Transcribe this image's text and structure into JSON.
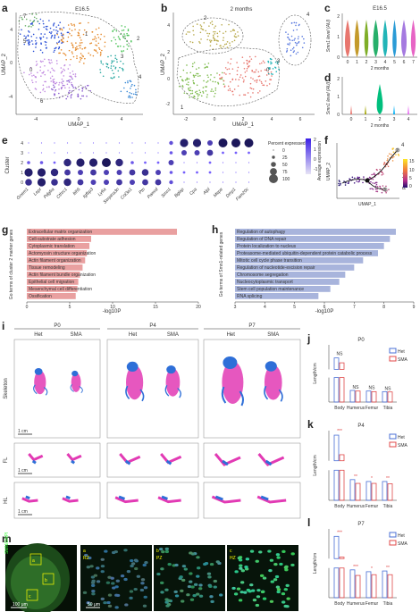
{
  "panels": {
    "a": {
      "label": "a",
      "title": "E16.5",
      "xlabel": "UMAP_1",
      "ylabel": "UMAP_2",
      "xticks": [
        "-4",
        "0",
        "4"
      ],
      "yticks": [
        "4",
        "0",
        "-4"
      ],
      "clusters": [
        "7",
        "5",
        "1",
        "0",
        "6",
        "2",
        "3",
        "4"
      ]
    },
    "b": {
      "label": "b",
      "title": "2 months",
      "xlabel": "UMAP_1",
      "ylabel": "UMAP_2",
      "xticks": [
        "-2",
        "0",
        "2",
        "4",
        "6"
      ],
      "yticks": [
        "4",
        "2",
        "0",
        "-2"
      ],
      "clusters": [
        "2",
        "0",
        "1",
        "3",
        "4"
      ]
    },
    "c": {
      "label": "c",
      "title": "E16.5",
      "ylabel": "Smn1 level (AU)",
      "xticks": [
        "0",
        "1",
        "2",
        "3",
        "4",
        "5",
        "6",
        "7"
      ],
      "yticks": [
        "0",
        "1",
        "2"
      ],
      "colors": [
        "#e8766e",
        "#c49a2b",
        "#7fae28",
        "#27b06b",
        "#22b5b8",
        "#2a9bd6",
        "#a57ae0",
        "#e765c5"
      ]
    },
    "d": {
      "label": "d",
      "title": "2 months",
      "ylabel": "Smn1 level (AU)",
      "xticks": [
        "0",
        "1",
        "2",
        "3",
        "4"
      ],
      "yticks": [
        "0",
        "1",
        "2"
      ],
      "colors": [
        "#e8766e",
        "#a3a500",
        "#00bf7d",
        "#00b0f6",
        "#e76bf3"
      ]
    },
    "e": {
      "label": "e",
      "ylabel": "Cluster",
      "genes": [
        "Gnem1",
        "Lepr",
        "Pdgfra",
        "Cthrc1",
        "Itih5",
        "Igfbp3",
        "Ly6a",
        "Serpina3n",
        "Col3a1",
        "Ptn",
        "Pamrd",
        "Smn1",
        "Bglap",
        "Cpa",
        "Alpl",
        "Mepe",
        "Dmp1",
        "Fam20c"
      ],
      "clusters": [
        "4",
        "3",
        "2",
        "1",
        "0"
      ],
      "size_legend": {
        "title": "Percent expressed",
        "values": [
          "0",
          "25",
          "50",
          "75",
          "100"
        ]
      },
      "color_legend": {
        "title": "Average expression",
        "values": [
          "2",
          "1",
          "0",
          "-1"
        ]
      }
    },
    "f": {
      "label": "f",
      "xlabel": "UMAP_1",
      "ylabel": "UMAP_2",
      "legend_title": "Pseudotime",
      "legend_values": [
        "15",
        "10",
        "5",
        "0"
      ],
      "nodes": [
        "1",
        "2",
        "3",
        "4"
      ]
    },
    "g": {
      "label": "g",
      "ylabel": "Go terms of cluster 2 marker genes",
      "xlabel": "-log10P",
      "xticks": [
        "0",
        "5",
        "10",
        "15",
        "20"
      ]
    },
    "h": {
      "label": "h",
      "ylabel": "Go terms of Smn1-related genes",
      "xlabel": "-log10P",
      "xticks": [
        "3",
        "4",
        "5",
        "6",
        "7",
        "8",
        "9"
      ]
    },
    "i": {
      "label": "i",
      "groups": [
        "P0",
        "P4",
        "P7"
      ],
      "genotypes": [
        "Het",
        "SMA"
      ],
      "rows": [
        "Skeleton",
        "FL",
        "HL"
      ],
      "scale": "1 cm"
    },
    "j": {
      "label": "j",
      "title": "P0",
      "ylabel": "Length/cm"
    },
    "k": {
      "label": "k",
      "title": "P4",
      "ylabel": "Length/cm"
    },
    "l": {
      "label": "l",
      "title": "P7",
      "ylabel": "Length/cm"
    },
    "m": {
      "label": "m",
      "stain": "SMN/DAPI",
      "scale1": "100 μm",
      "scale2": "50 μm",
      "subs": [
        {
          "letter": "a",
          "zone": "RZ"
        },
        {
          "letter": "b",
          "zone": "PZ"
        },
        {
          "letter": "c",
          "zone": "HZ"
        }
      ],
      "boxes": [
        "a",
        "b",
        "c"
      ]
    }
  },
  "chart_data": [
    {
      "type": "bar",
      "panel": "g",
      "title": "",
      "categories": [
        "Extracellular matrix organization",
        "Cell-substrate adhesion",
        "Cytoplasmic translation",
        "Actomyosin structure organization",
        "Actin filament organization",
        "Tissue remodeling",
        "Actin filament bundle organization",
        "Epithelial cell migration",
        "Mesenchymal cell differentiation",
        "Ossification"
      ],
      "values": [
        17.5,
        7.5,
        7.3,
        7.0,
        6.8,
        6.5,
        6.2,
        6.0,
        5.9,
        5.7
      ],
      "xlabel": "-log10P",
      "xlim": [
        0,
        20
      ],
      "color": "#e9a0a0"
    },
    {
      "type": "bar",
      "panel": "h",
      "title": "",
      "categories": [
        "Regulation of autophagy",
        "Regulation of DNA repair",
        "Protein localization to nucleus",
        "Proteasome-mediated ubiquitin-dependent protein catabolic process",
        "Mitotic cell cycle phase transition",
        "Regulation of nucleotide-excision repair",
        "Chromosome segregation",
        "Nucleocytoplasmic transport",
        "Stem cell population maintenance",
        "RNA splicing"
      ],
      "values": [
        8.4,
        8.2,
        8.0,
        7.8,
        7.3,
        7.0,
        6.7,
        6.5,
        6.2,
        5.8
      ],
      "xlabel": "-log10P",
      "xlim": [
        3,
        9
      ],
      "color": "#a8b4dc"
    },
    {
      "type": "bar",
      "panel": "j",
      "title": "P0",
      "categories": [
        "Body",
        "Humerus",
        "Femur",
        "Tibia"
      ],
      "series": [
        {
          "name": "Het",
          "values": [
            3.2,
            0.38,
            0.36,
            0.34
          ],
          "color": "#4a6fd6"
        },
        {
          "name": "SMA",
          "values": [
            2.9,
            0.36,
            0.34,
            0.33
          ],
          "color": "#e04848"
        }
      ],
      "ylabel": "Length/cm",
      "yticks": [
        "4.0",
        "3.5",
        "3.0",
        "2.5",
        "0.4",
        "0.2",
        "0.0"
      ],
      "signif": [
        "NS",
        "NS",
        "NS",
        "NS"
      ]
    },
    {
      "type": "bar",
      "panel": "k",
      "title": "P4",
      "categories": [
        "Body",
        "Humerus",
        "Femur",
        "Tibia"
      ],
      "series": [
        {
          "name": "Het",
          "values": [
            5.2,
            0.55,
            0.5,
            0.5
          ],
          "color": "#4a6fd6"
        },
        {
          "name": "SMA",
          "values": [
            3.9,
            0.45,
            0.45,
            0.44
          ],
          "color": "#e04848"
        }
      ],
      "ylabel": "Length/cm",
      "yticks": [
        "5.5",
        "5.0",
        "4.5",
        "4.0",
        "0.6",
        "0.4",
        "0.2",
        "0.0"
      ],
      "signif": [
        "***",
        "**",
        "*",
        "**"
      ]
    },
    {
      "type": "bar",
      "panel": "l",
      "title": "P7",
      "categories": [
        "Body",
        "Humerus",
        "Femur",
        "Tibia"
      ],
      "series": [
        {
          "name": "Het",
          "values": [
            6.0,
            0.75,
            0.7,
            0.72
          ],
          "color": "#4a6fd6"
        },
        {
          "name": "SMA",
          "values": [
            4.6,
            0.6,
            0.62,
            0.62
          ],
          "color": "#e04848"
        }
      ],
      "ylabel": "Length/cm",
      "yticks": [
        "6.5",
        "6.0",
        "5.5",
        "5.0",
        "4.5",
        "0.8",
        "0.4",
        "0.0"
      ],
      "signif": [
        "***",
        "***",
        "*",
        "**"
      ]
    }
  ]
}
